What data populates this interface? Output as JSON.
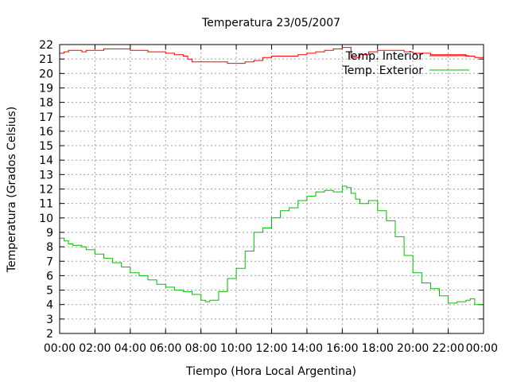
{
  "chart_data": {
    "type": "line",
    "title": "Temperatura 23/05/2007",
    "xlabel": "Tiempo (Hora Local Argentina)",
    "ylabel": "Temperatura (Grados Celsius)",
    "xlim": [
      0,
      24
    ],
    "ylim": [
      2,
      22
    ],
    "x_ticks": [
      "00:00",
      "02:00",
      "04:00",
      "06:00",
      "08:00",
      "10:00",
      "12:00",
      "14:00",
      "16:00",
      "18:00",
      "20:00",
      "22:00",
      "00:00"
    ],
    "y_ticks": [
      "2",
      "3",
      "4",
      "5",
      "6",
      "7",
      "8",
      "9",
      "10",
      "11",
      "12",
      "13",
      "14",
      "15",
      "16",
      "17",
      "18",
      "19",
      "20",
      "21",
      "22"
    ],
    "grid": true,
    "legend_position": "top-right",
    "series": [
      {
        "name": "Temp. Interior",
        "color": "#ff0000",
        "x": [
          0,
          0.25,
          0.5,
          0.75,
          1,
          1.25,
          1.5,
          1.75,
          2,
          2.5,
          3,
          3.5,
          4,
          4.5,
          5,
          5.5,
          6,
          6.5,
          7,
          7.25,
          7.5,
          8,
          8.5,
          9,
          9.5,
          10,
          10.5,
          11,
          11.5,
          12,
          12.5,
          13,
          13.5,
          14,
          14.5,
          15,
          15.5,
          16,
          16.5,
          17,
          17.5,
          18,
          18.5,
          19,
          19.5,
          20,
          20.5,
          21,
          21.5,
          22,
          22.5,
          23,
          23.5,
          24
        ],
        "values": [
          21.4,
          21.5,
          21.6,
          21.6,
          21.6,
          21.5,
          21.6,
          21.6,
          21.6,
          21.7,
          21.7,
          21.7,
          21.6,
          21.6,
          21.5,
          21.5,
          21.4,
          21.3,
          21.2,
          21.0,
          20.8,
          20.8,
          20.8,
          20.8,
          20.7,
          20.7,
          20.8,
          20.9,
          21.1,
          21.2,
          21.2,
          21.2,
          21.3,
          21.4,
          21.5,
          21.6,
          21.7,
          21.8,
          21.1,
          21.3,
          21.5,
          21.6,
          21.6,
          21.6,
          21.5,
          21.4,
          21.4,
          21.3,
          21.3,
          21.3,
          21.3,
          21.2,
          21.1,
          21.1
        ]
      },
      {
        "name": "Temp. Exterior",
        "color": "#00c000",
        "x": [
          0,
          0.25,
          0.5,
          0.75,
          1,
          1.25,
          1.5,
          2,
          2.5,
          3,
          3.5,
          4,
          4.5,
          5,
          5.5,
          6,
          6.5,
          7,
          7.5,
          8,
          8.25,
          8.5,
          9,
          9.5,
          10,
          10.5,
          11,
          11.5,
          12,
          12.5,
          13,
          13.5,
          14,
          14.5,
          15,
          15.5,
          16,
          16.25,
          16.5,
          16.75,
          17,
          17.5,
          18,
          18.5,
          19,
          19.5,
          20,
          20.5,
          21,
          21.5,
          22,
          22.25,
          22.5,
          23,
          23.25,
          23.5,
          24
        ],
        "values": [
          8.6,
          8.4,
          8.2,
          8.1,
          8.1,
          8.0,
          7.8,
          7.5,
          7.2,
          6.9,
          6.6,
          6.2,
          6.0,
          5.7,
          5.4,
          5.2,
          5.0,
          4.9,
          4.7,
          4.3,
          4.2,
          4.3,
          4.9,
          5.8,
          6.5,
          7.7,
          9.0,
          9.3,
          10.0,
          10.5,
          10.7,
          11.2,
          11.5,
          11.8,
          11.9,
          11.8,
          12.2,
          12.1,
          11.7,
          11.3,
          11.0,
          11.2,
          10.5,
          9.8,
          8.7,
          7.4,
          6.2,
          5.5,
          5.1,
          4.6,
          4.1,
          4.1,
          4.2,
          4.3,
          4.4,
          4.0,
          3.3
        ]
      }
    ]
  }
}
